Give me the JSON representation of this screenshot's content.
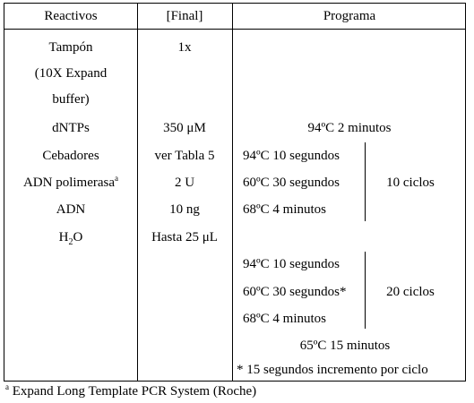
{
  "headers": [
    "Reactivos",
    "[Final]",
    "Programa"
  ],
  "reactivos": [
    {
      "name": "Tampón",
      "final": "1x"
    },
    {
      "name": "(10X Expand",
      "final": ""
    },
    {
      "name": "buffer)",
      "final": ""
    },
    {
      "name": "dNTPs",
      "final": "350 μM"
    },
    {
      "name": "Cebadores",
      "final": "ver Tabla 5"
    },
    {
      "name": "ADN polimerasa",
      "name_sup": "a",
      "final": "2 U"
    },
    {
      "name": "ADN",
      "final": "10 ng"
    },
    {
      "name": "H",
      "name_sub": "2",
      "name_tail": "O",
      "final": "Hasta 25 μL"
    }
  ],
  "programa": {
    "initial": "94ºC  2 minutos",
    "block1": {
      "steps": [
        "94ºC 10 segundos",
        "60ºC 30 segundos",
        "68ºC 4 minutos"
      ],
      "cycles": "10 ciclos"
    },
    "block2": {
      "steps": [
        "94ºC 10 segundos",
        "60ºC 30 segundos*",
        "68ºC 4 minutos"
      ],
      "cycles": "20 ciclos"
    },
    "final": "65ºC 15 minutos",
    "note": "* 15 segundos incremento por ciclo"
  },
  "footnote": {
    "marker": "a",
    "text": " Expand Long Template PCR System (Roche)"
  }
}
